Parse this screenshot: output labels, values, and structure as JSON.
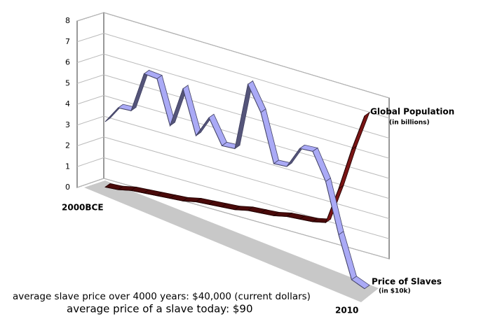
{
  "chart_data": {
    "type": "line3d",
    "categories": [
      "2000BCE",
      null,
      null,
      null,
      null,
      null,
      null,
      null,
      null,
      null,
      null,
      null,
      null,
      null,
      null,
      null,
      null,
      null,
      null,
      null,
      "2010"
    ],
    "ylim": [
      0,
      8
    ],
    "yticks": [
      0,
      1,
      2,
      3,
      4,
      5,
      6,
      7,
      8
    ],
    "grid": true,
    "series": [
      {
        "name": "Global Population",
        "unit_label": "(in billions)",
        "color": "#4a0a0a",
        "values": [
          0.1,
          0.1,
          0.2,
          0.2,
          0.2,
          0.2,
          0.2,
          0.3,
          0.3,
          0.3,
          0.3,
          0.4,
          0.4,
          0.4,
          0.5,
          0.5,
          0.5,
          0.6,
          2.6,
          4.9,
          6.9
        ]
      },
      {
        "name": "Price of Slaves",
        "unit_label": "(in $10k)",
        "color": "#aaaaf6",
        "values": [
          3.2,
          4.1,
          4.2,
          6.2,
          6.2,
          4.2,
          6.2,
          4.2,
          5.3,
          4.2,
          4.3,
          7.6,
          6.5,
          4.3,
          4.4,
          5.5,
          5.6,
          4.4,
          2.1,
          0.2,
          0.009
        ]
      }
    ],
    "annotations": [
      "average slave price over 4000 years: $40,000 (current dollars)",
      "average price of a slave today: $90"
    ]
  }
}
